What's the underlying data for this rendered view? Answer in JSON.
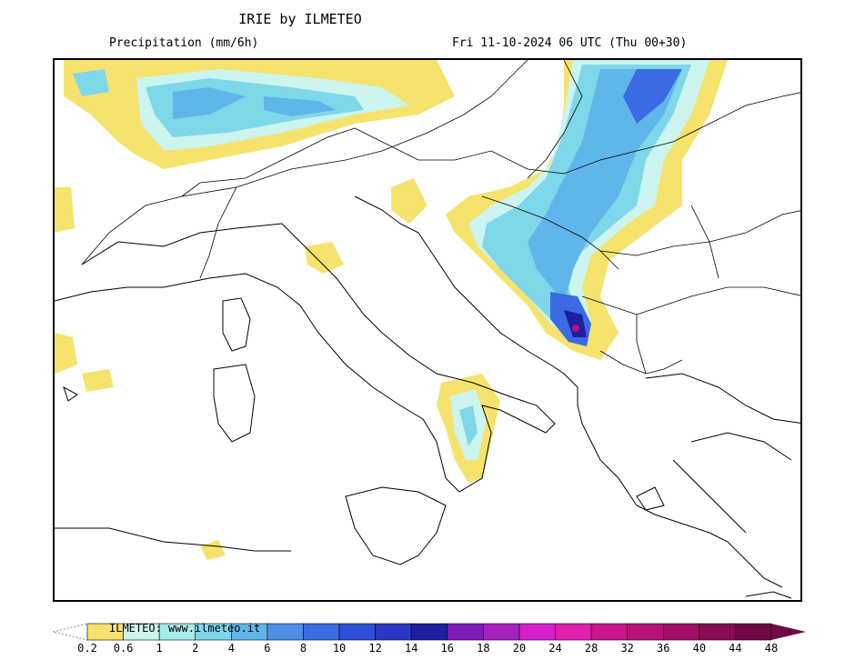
{
  "header": {
    "title": "IRIE by ILMETEO",
    "variable": "Precipitation (mm/6h)",
    "valid_time": "Fri 11-10-2024 06 UTC (Thu 00+30)"
  },
  "legend": {
    "watermark": "ILMETEO: www.ilmeteo.it",
    "bins": [
      {
        "label": "0.2",
        "color": "#ffffff"
      },
      {
        "label": "0.6",
        "color": "#f5e36e"
      },
      {
        "label": "1",
        "color": "#ccf5f0"
      },
      {
        "label": "2",
        "color": "#a6ece6"
      },
      {
        "label": "4",
        "color": "#7fd7ea"
      },
      {
        "label": "6",
        "color": "#5fb6ea"
      },
      {
        "label": "8",
        "color": "#4c8fe8"
      },
      {
        "label": "10",
        "color": "#3a6be2"
      },
      {
        "label": "12",
        "color": "#2f4fd8"
      },
      {
        "label": "14",
        "color": "#2a37c4"
      },
      {
        "label": "16",
        "color": "#1d1ea0"
      },
      {
        "label": "18",
        "color": "#7d1ab8"
      },
      {
        "label": "20",
        "color": "#a81fc0"
      },
      {
        "label": "24",
        "color": "#d81fd0"
      },
      {
        "label": "28",
        "color": "#e01fb0"
      },
      {
        "label": "32",
        "color": "#c8168f"
      },
      {
        "label": "36",
        "color": "#b8127a"
      },
      {
        "label": "40",
        "color": "#a00e66"
      },
      {
        "label": "44",
        "color": "#8a0a55"
      },
      {
        "label": "48",
        "color": "#700847"
      }
    ]
  },
  "map": {
    "colors": {
      "land_border": "#000000",
      "yellow": "#f5e36e",
      "light": "#ccf5f0",
      "cyan": "#7fd7ea",
      "mid": "#5fb6ea",
      "blue": "#3a6be2",
      "dark": "#1d1ea0",
      "magenta": "#b8127a"
    }
  }
}
